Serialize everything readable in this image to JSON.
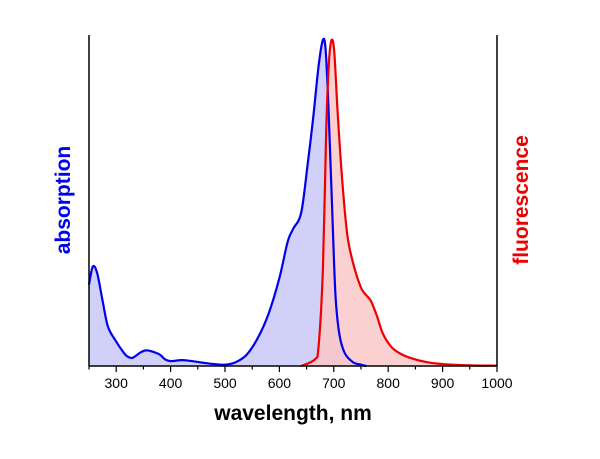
{
  "chart_data": {
    "type": "area",
    "xlabel": "wavelength, nm",
    "xlim": [
      250,
      1000
    ],
    "x_ticks": [
      300,
      400,
      500,
      600,
      700,
      800,
      900,
      1000
    ],
    "ylim": [
      0,
      1
    ],
    "y_ticks": false,
    "grid": false,
    "legend": "none",
    "series": [
      {
        "name": "absorption",
        "axis": "left",
        "line_color": "#0000ee",
        "fill_color": "#c8c8f8",
        "points": [
          [
            250,
            0.25
          ],
          [
            257,
            0.305
          ],
          [
            265,
            0.285
          ],
          [
            275,
            0.2
          ],
          [
            285,
            0.12
          ],
          [
            300,
            0.075
          ],
          [
            312,
            0.045
          ],
          [
            320,
            0.03
          ],
          [
            330,
            0.025
          ],
          [
            345,
            0.042
          ],
          [
            355,
            0.048
          ],
          [
            365,
            0.045
          ],
          [
            380,
            0.035
          ],
          [
            390,
            0.02
          ],
          [
            400,
            0.015
          ],
          [
            420,
            0.018
          ],
          [
            435,
            0.016
          ],
          [
            460,
            0.01
          ],
          [
            480,
            0.006
          ],
          [
            500,
            0.004
          ],
          [
            520,
            0.012
          ],
          [
            540,
            0.035
          ],
          [
            560,
            0.085
          ],
          [
            580,
            0.16
          ],
          [
            600,
            0.27
          ],
          [
            615,
            0.38
          ],
          [
            625,
            0.42
          ],
          [
            640,
            0.47
          ],
          [
            652,
            0.62
          ],
          [
            662,
            0.76
          ],
          [
            672,
            0.92
          ],
          [
            680,
            1.0
          ],
          [
            685,
            0.97
          ],
          [
            690,
            0.8
          ],
          [
            697,
            0.48
          ],
          [
            703,
            0.22
          ],
          [
            710,
            0.1
          ],
          [
            720,
            0.04
          ],
          [
            735,
            0.012
          ],
          [
            750,
            0.004
          ],
          [
            760,
            0
          ]
        ]
      },
      {
        "name": "fluorescence",
        "axis": "right",
        "line_color": "#ee0000",
        "fill_color": "#f9c8c8",
        "points": [
          [
            640,
            0
          ],
          [
            665,
            0.02
          ],
          [
            672,
            0.06
          ],
          [
            680,
            0.3
          ],
          [
            686,
            0.72
          ],
          [
            691,
            0.93
          ],
          [
            696,
            1.0
          ],
          [
            701,
            0.96
          ],
          [
            707,
            0.78
          ],
          [
            715,
            0.58
          ],
          [
            725,
            0.4
          ],
          [
            738,
            0.3
          ],
          [
            750,
            0.24
          ],
          [
            758,
            0.22
          ],
          [
            768,
            0.2
          ],
          [
            780,
            0.15
          ],
          [
            790,
            0.1
          ],
          [
            805,
            0.06
          ],
          [
            820,
            0.04
          ],
          [
            840,
            0.025
          ],
          [
            870,
            0.012
          ],
          [
            900,
            0.006
          ],
          [
            950,
            0.002
          ],
          [
            1000,
            0.001
          ]
        ]
      }
    ]
  }
}
